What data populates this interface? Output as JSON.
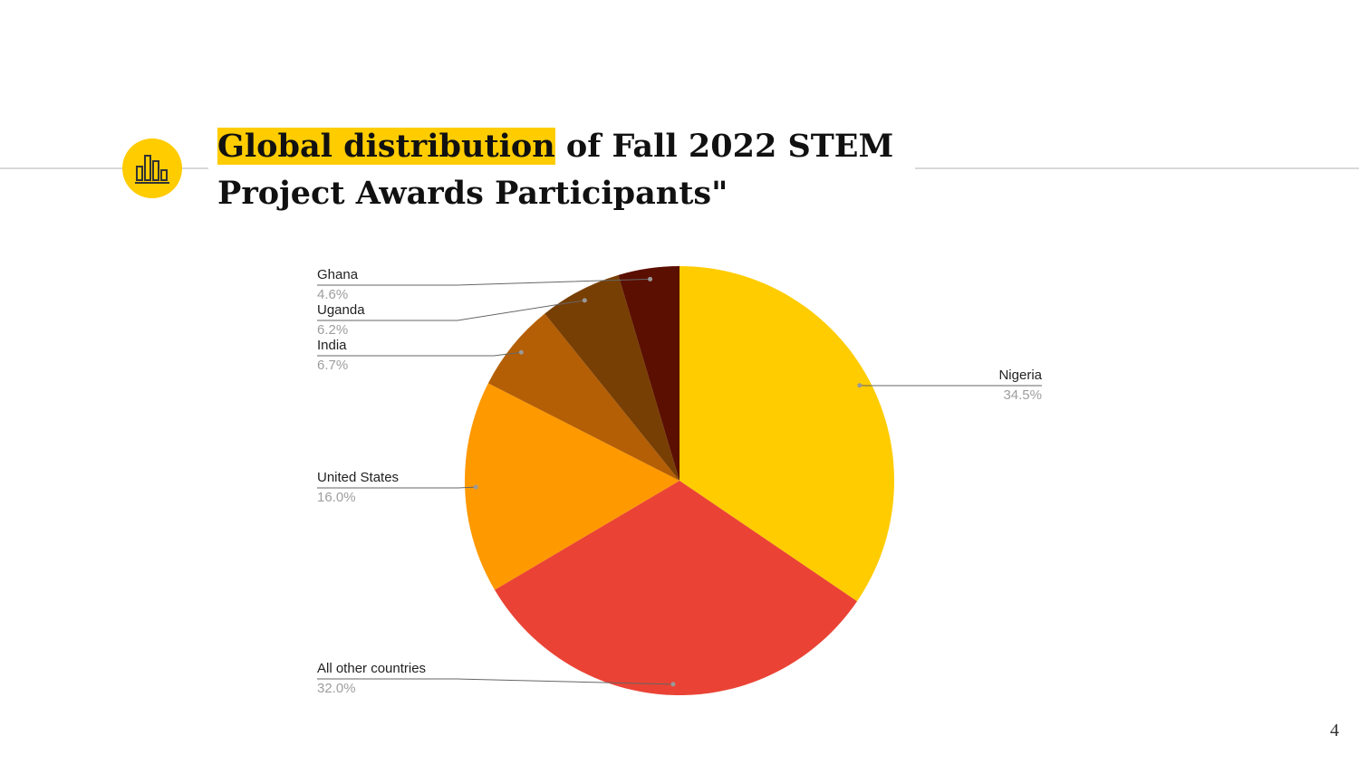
{
  "slide": {
    "title_highlight": "Global distribution",
    "title_rest": "of Fall 2022 STEM Project Awards Participants\"",
    "page_number": "4"
  },
  "chart_data": {
    "type": "pie",
    "categories": [
      "Nigeria",
      "All other countries",
      "United States",
      "India",
      "Uganda",
      "Ghana"
    ],
    "values": [
      34.5,
      32.0,
      16.0,
      6.7,
      6.2,
      4.6
    ],
    "value_labels": [
      "34.5%",
      "32.0%",
      "16.0%",
      "6.7%",
      "6.2%",
      "4.6%"
    ],
    "colors": [
      "#ffcc00",
      "#ea4335",
      "#ff9900",
      "#b45f06",
      "#783f04",
      "#5b0f00"
    ]
  }
}
